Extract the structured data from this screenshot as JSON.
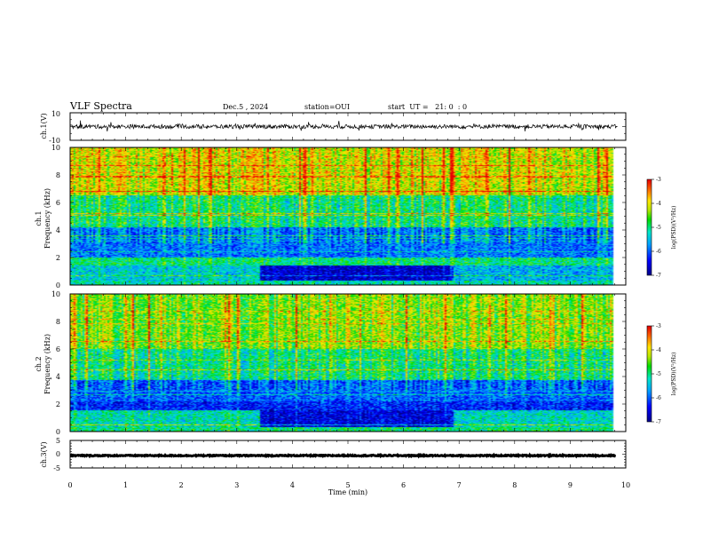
{
  "header": {
    "title": "VLF Spectra",
    "date": "Dec.5 , 2024",
    "station": "station=OUI",
    "start": "start  UT =   21: 0  : 0"
  },
  "chart_data": [
    {
      "type": "line",
      "panel": "ch1-waveform",
      "ylabel": "ch.1(V)",
      "ylim": [
        -10,
        10
      ],
      "yticks": [
        "10",
        "-10"
      ],
      "xlim": [
        0,
        10
      ],
      "series": [
        {
          "baseline": 0,
          "noise_amplitude": 1.5,
          "spike_amplitude": 3.5,
          "color": "#000000"
        }
      ]
    },
    {
      "type": "heatmap",
      "panel": "ch1-spectrogram",
      "ylabel": "Frequency (kHz)",
      "channel_label": "ch.1",
      "ylim": [
        0,
        10
      ],
      "yticks": [
        "0",
        "2",
        "4",
        "6",
        "8",
        "10"
      ],
      "xlim": [
        0,
        10
      ],
      "data_end_min": 9.8,
      "background_bands": [
        {
          "f0": 0.0,
          "f1": 0.3,
          "level": -5.2
        },
        {
          "f0": 0.3,
          "f1": 1.4,
          "level": -6.3,
          "segments": [
            [
              0,
              3.4,
              -5.4
            ],
            [
              3.4,
              6.9,
              -6.7
            ],
            [
              6.9,
              9.8,
              -5.6
            ]
          ]
        },
        {
          "f0": 1.4,
          "f1": 2.0,
          "level": -5.0
        },
        {
          "f0": 2.0,
          "f1": 4.2,
          "level": -5.9
        },
        {
          "f0": 4.2,
          "f1": 6.5,
          "level": -5.0
        },
        {
          "f0": 6.5,
          "f1": 10.0,
          "level": -4.1
        }
      ],
      "colorbar": {
        "label": "log(PSD)(V²/Hz)",
        "range": [
          -7,
          -3
        ],
        "ticks": [
          "-3",
          "-4",
          "-5",
          "-6",
          "-7"
        ]
      }
    },
    {
      "type": "heatmap",
      "panel": "ch2-spectrogram",
      "ylabel": "Frequency (kHz)",
      "channel_label": "ch.2",
      "ylim": [
        0,
        10
      ],
      "yticks": [
        "0",
        "2",
        "4",
        "6",
        "8",
        "10"
      ],
      "xlim": [
        0,
        10
      ],
      "data_end_min": 9.8,
      "background_bands": [
        {
          "f0": 0.0,
          "f1": 0.3,
          "level": -5.0
        },
        {
          "f0": 0.3,
          "f1": 1.5,
          "level": -5.8,
          "segments": [
            [
              0,
              3.4,
              -5.2
            ],
            [
              3.4,
              6.9,
              -6.6
            ],
            [
              6.9,
              9.8,
              -5.3
            ]
          ]
        },
        {
          "f0": 1.5,
          "f1": 2.2,
          "level": -6.3
        },
        {
          "f0": 2.2,
          "f1": 3.8,
          "level": -6.0
        },
        {
          "f0": 3.8,
          "f1": 6.0,
          "level": -5.0
        },
        {
          "f0": 6.0,
          "f1": 10.0,
          "level": -4.4
        }
      ],
      "colorbar": {
        "label": "log(PSD)(V²/Hz)",
        "range": [
          -7,
          -3
        ],
        "ticks": [
          "-3",
          "-4",
          "-5",
          "-6",
          "-7"
        ]
      }
    },
    {
      "type": "line",
      "panel": "ch3-waveform",
      "ylabel": "ch.3(V)",
      "ylim": [
        -5,
        5
      ],
      "yticks": [
        "5",
        "0",
        "-5"
      ],
      "xlim": [
        0,
        10
      ],
      "xticks": [
        "0",
        "1",
        "2",
        "3",
        "4",
        "5",
        "6",
        "7",
        "8",
        "9",
        "10"
      ],
      "xlabel": "Time (min)",
      "series": [
        {
          "baseline": -0.5,
          "noise_amplitude": 0.2,
          "color": "#000000"
        }
      ]
    }
  ]
}
